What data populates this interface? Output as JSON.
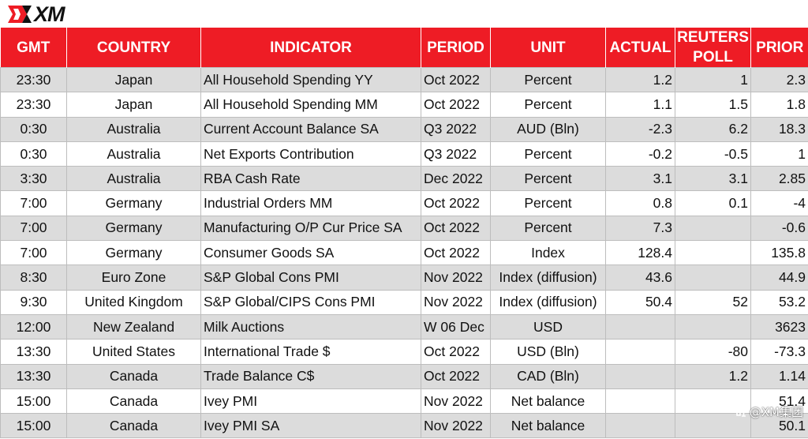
{
  "brand": {
    "logo_text": "XM",
    "accent": "#ee1c25"
  },
  "table": {
    "headers": {
      "gmt": "GMT",
      "country": "COUNTRY",
      "indicator": "INDICATOR",
      "period": "PERIOD",
      "unit": "UNIT",
      "actual": "ACTUAL",
      "poll_line1": "REUTERS",
      "poll_line2": "POLL",
      "prior": "PRIOR"
    },
    "rows": [
      {
        "gmt": "23:30",
        "country": "Japan",
        "indicator": "All Household Spending YY",
        "period": "Oct 2022",
        "unit": "Percent",
        "actual": "1.2",
        "poll": "1",
        "prior": "2.3"
      },
      {
        "gmt": "23:30",
        "country": "Japan",
        "indicator": "All Household Spending MM",
        "period": "Oct 2022",
        "unit": "Percent",
        "actual": "1.1",
        "poll": "1.5",
        "prior": "1.8"
      },
      {
        "gmt": "0:30",
        "country": "Australia",
        "indicator": "Current Account Balance SA",
        "period": "Q3 2022",
        "unit": "AUD (Bln)",
        "actual": "-2.3",
        "poll": "6.2",
        "prior": "18.3"
      },
      {
        "gmt": "0:30",
        "country": "Australia",
        "indicator": "Net Exports Contribution",
        "period": "Q3 2022",
        "unit": "Percent",
        "actual": "-0.2",
        "poll": "-0.5",
        "prior": "1"
      },
      {
        "gmt": "3:30",
        "country": "Australia",
        "indicator": "RBA Cash Rate",
        "period": "Dec 2022",
        "unit": "Percent",
        "actual": "3.1",
        "poll": "3.1",
        "prior": "2.85"
      },
      {
        "gmt": "7:00",
        "country": "Germany",
        "indicator": "Industrial Orders MM",
        "period": "Oct 2022",
        "unit": "Percent",
        "actual": "0.8",
        "poll": "0.1",
        "prior": "-4"
      },
      {
        "gmt": "7:00",
        "country": "Germany",
        "indicator": "Manufacturing O/P Cur Price SA",
        "period": "Oct 2022",
        "unit": "Percent",
        "actual": "7.3",
        "poll": "",
        "prior": "-0.6"
      },
      {
        "gmt": "7:00",
        "country": "Germany",
        "indicator": "Consumer Goods SA",
        "period": "Oct 2022",
        "unit": "Index",
        "actual": "128.4",
        "poll": "",
        "prior": "135.8"
      },
      {
        "gmt": "8:30",
        "country": "Euro Zone",
        "indicator": "S&P Global Cons PMI",
        "period": "Nov 2022",
        "unit": "Index (diffusion)",
        "actual": "43.6",
        "poll": "",
        "prior": "44.9"
      },
      {
        "gmt": "9:30",
        "country": "United Kingdom",
        "indicator": "S&P Global/CIPS Cons PMI",
        "period": "Nov 2022",
        "unit": "Index (diffusion)",
        "actual": "50.4",
        "poll": "52",
        "prior": "53.2"
      },
      {
        "gmt": "12:00",
        "country": "New Zealand",
        "indicator": "Milk Auctions",
        "period": "W 06 Dec",
        "unit": "USD",
        "actual": "",
        "poll": "",
        "prior": "3623"
      },
      {
        "gmt": "13:30",
        "country": "United States",
        "indicator": "International Trade $",
        "period": "Oct 2022",
        "unit": "USD (Bln)",
        "actual": "",
        "poll": "-80",
        "prior": "-73.3"
      },
      {
        "gmt": "13:30",
        "country": "Canada",
        "indicator": "Trade Balance C$",
        "period": "Oct 2022",
        "unit": "CAD (Bln)",
        "actual": "",
        "poll": "1.2",
        "prior": "1.14"
      },
      {
        "gmt": "15:00",
        "country": "Canada",
        "indicator": "Ivey PMI",
        "period": "Nov 2022",
        "unit": "Net balance",
        "actual": "",
        "poll": "",
        "prior": "51.4"
      },
      {
        "gmt": "15:00",
        "country": "Canada",
        "indicator": "Ivey PMI SA",
        "period": "Nov 2022",
        "unit": "Net balance",
        "actual": "",
        "poll": "",
        "prior": "50.1"
      }
    ]
  },
  "watermark": {
    "text": "@XM集团",
    "icon": "zhihu-icon"
  }
}
